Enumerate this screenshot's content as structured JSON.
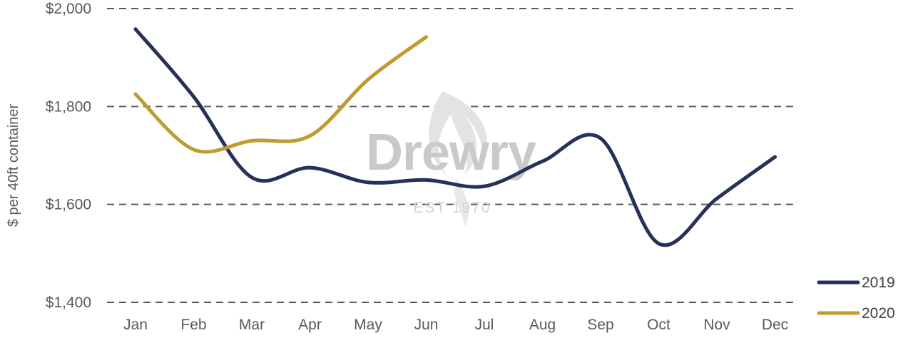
{
  "chart_data": {
    "type": "line",
    "categories": [
      "Jan",
      "Feb",
      "Mar",
      "Apr",
      "May",
      "Jun",
      "Jul",
      "Aug",
      "Sep",
      "Oct",
      "Nov",
      "Dec"
    ],
    "series": [
      {
        "name": "2019",
        "color": "#263159",
        "values": [
          1958,
          1820,
          1655,
          1675,
          1645,
          1650,
          1637,
          1688,
          1735,
          1520,
          1612,
          1697
        ]
      },
      {
        "name": "2020",
        "color": "#BF9B30",
        "values": [
          1825,
          1712,
          1730,
          1740,
          1855,
          1942,
          null,
          null,
          null,
          null,
          null,
          null
        ]
      }
    ],
    "title": "",
    "xlabel": "",
    "ylabel": "$ per 40ft container",
    "ylim": [
      1400,
      2000
    ],
    "yticks": [
      1400,
      1600,
      1800,
      2000
    ],
    "ytick_labels": [
      "$1,400",
      "$1,600",
      "$1,800",
      "$2,000"
    ],
    "grid": "horizontal dashed",
    "legend": "bottom-right"
  },
  "watermark": {
    "brand": "Drewry",
    "tagline": "EST 1970"
  }
}
